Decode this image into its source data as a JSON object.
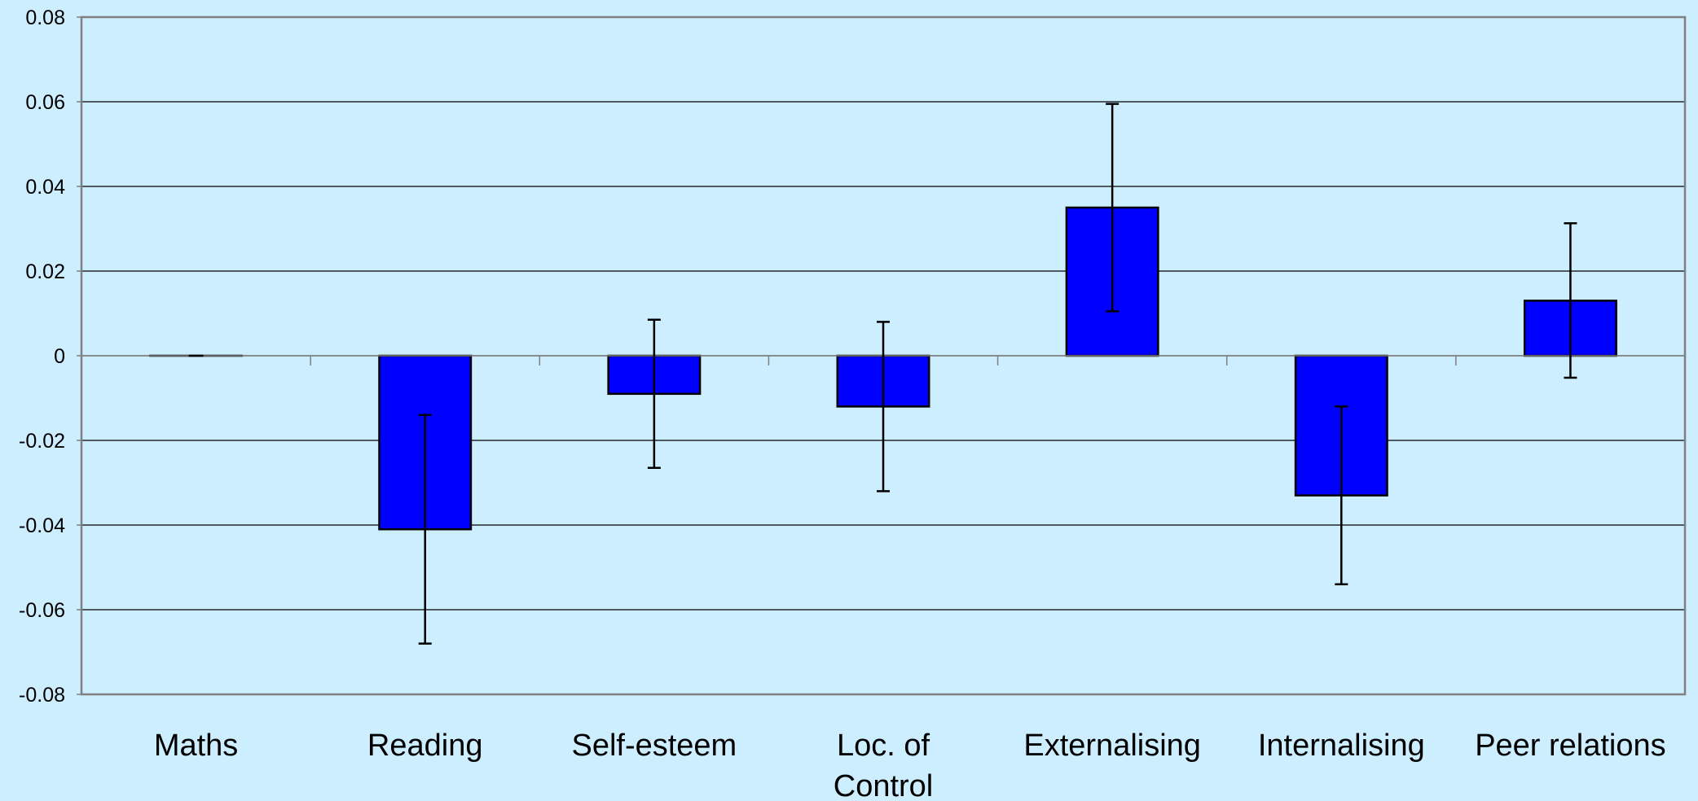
{
  "chart_data": {
    "type": "bar",
    "title": "",
    "xlabel": "",
    "ylabel": "",
    "categories": [
      "Maths",
      "Reading",
      "Self-esteem",
      "Loc. of Control",
      "Externalising",
      "Internalising",
      "Peer relations"
    ],
    "category_label_lines": [
      [
        "Maths"
      ],
      [
        "Reading"
      ],
      [
        "Self-esteem"
      ],
      [
        "Loc. of",
        "Control"
      ],
      [
        "Externalising"
      ],
      [
        "Internalising"
      ],
      [
        "Peer relations"
      ]
    ],
    "values": [
      0,
      -0.041,
      -0.009,
      -0.012,
      0.035,
      -0.033,
      0.013
    ],
    "error_low": [
      0,
      -0.068,
      -0.0265,
      -0.032,
      0.0105,
      -0.054,
      -0.0052
    ],
    "error_high": [
      0,
      -0.014,
      0.0085,
      0.008,
      0.0595,
      -0.012,
      0.0313
    ],
    "ylim": [
      -0.08,
      0.08
    ],
    "yticks": [
      0.08,
      0.06,
      0.04,
      0.02,
      0,
      -0.02,
      -0.04,
      -0.06,
      -0.08
    ],
    "ytick_labels": [
      "0.08",
      "0.06",
      "0.04",
      "0.02",
      "0",
      "-0.02",
      "-0.04",
      "-0.06",
      "-0.08"
    ],
    "grid": true,
    "legend": "none",
    "colors": {
      "background": "#cdeeff",
      "bar_fill": "#0000ff",
      "bar_stroke": "#000000",
      "grid": "#000000",
      "axis": "#808080"
    }
  }
}
